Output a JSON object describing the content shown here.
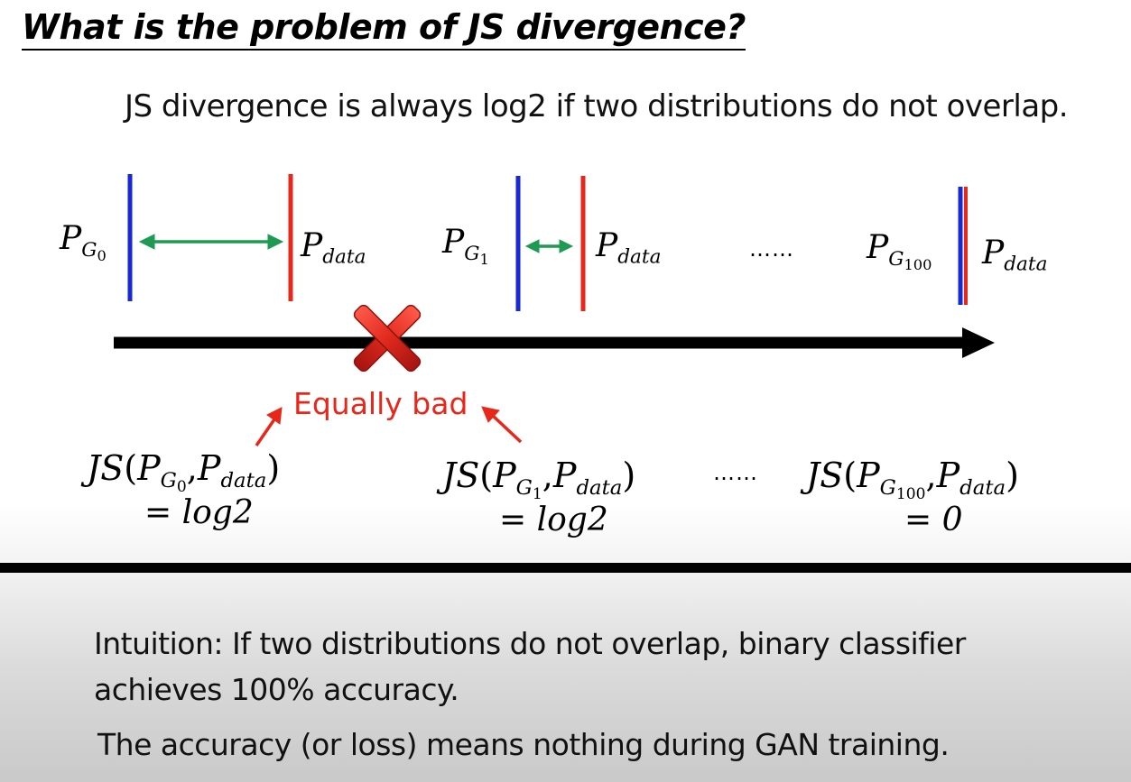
{
  "title": "What is the problem of JS divergence?",
  "statement": "JS divergence is always log2 if two distributions do not overlap.",
  "labels": {
    "p_letter": "P",
    "g_letter": "G",
    "data_subscript": "data",
    "g0_index": "0",
    "g1_index": "1",
    "g100_index": "100",
    "ellipsis": "……"
  },
  "js": {
    "prefix": "JS",
    "open": "(",
    "comma": ",",
    "close": ")",
    "values": [
      "= log2",
      "= log2",
      "= 0"
    ]
  },
  "annotation": "Equally bad",
  "intuition_line1": "Intuition: If two distributions do not overlap, binary classifier",
  "intuition_line2": "achieves 100% accuracy.",
  "conclusion": "The accuracy (or loss) means nothing during GAN training.",
  "colors": {
    "generator_line": "#1a27d6",
    "data_line": "#e8261a",
    "distance_arrow": "#1e9a52",
    "axis": "#000000",
    "cross": "#d8201a",
    "annotation": "#e8261a"
  },
  "icons": [
    "cross-mark-icon",
    "arrow-icon"
  ]
}
